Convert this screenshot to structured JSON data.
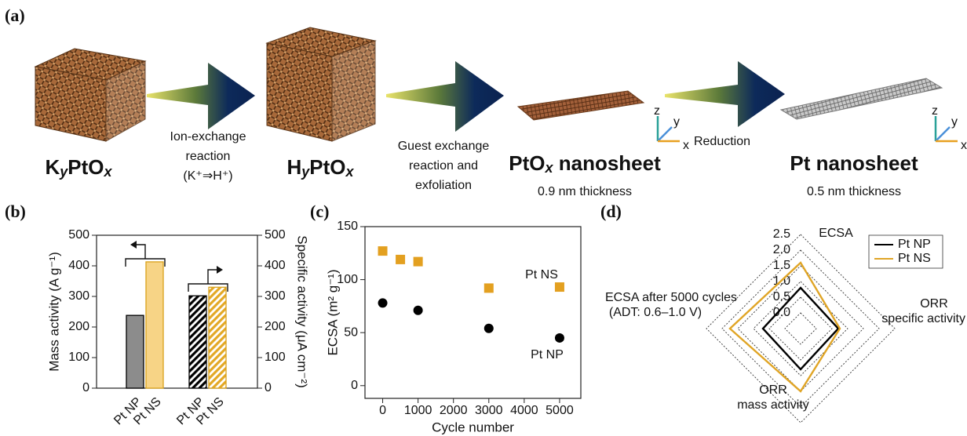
{
  "panel_a": {
    "label": "(a)",
    "stage_1": {
      "name": [
        "K",
        "y",
        "PtO",
        "x"
      ]
    },
    "step_1": [
      "Ion-exchange",
      "reaction",
      "(K⁺⇒H⁺)"
    ],
    "stage_2": {
      "name": [
        "H",
        "y",
        "PtO",
        "x"
      ]
    },
    "step_2": [
      "Guest exchange",
      "reaction and",
      "exfoliation"
    ],
    "stage_3": {
      "name": [
        "PtO",
        "x",
        " nanosheet"
      ],
      "note": "0.9 nm thickness"
    },
    "step_3": [
      "Reduction"
    ],
    "stage_4": {
      "name": [
        "Pt nanosheet"
      ],
      "note": "0.5 nm thickness"
    },
    "axes_icon": [
      "z",
      "y",
      "x"
    ]
  },
  "chart_data": [
    {
      "type": "bar",
      "label": "(b)",
      "categories": [
        "Pt NP",
        "Pt NS",
        "Pt NP",
        "Pt NS"
      ],
      "category_colors": [
        "#000000",
        "#d9a21b",
        "#000000",
        "#d9a21b"
      ],
      "series": [
        {
          "values": [
            238,
            413,
            null,
            null
          ],
          "colors": [
            "#8c8c8c",
            "#f7d486"
          ],
          "hatch": false
        },
        {
          "axis": "y2",
          "values": [
            null,
            null,
            302,
            330
          ],
          "colors": [
            "#000000",
            "#e3a825"
          ],
          "hatch": true
        }
      ],
      "ylabel": "Mass activity (A g⁻¹)",
      "y2label": "Specific activity (μA cm⁻²)",
      "ylim": [
        0,
        500
      ],
      "yticks": [
        0,
        100,
        200,
        300,
        400,
        500
      ],
      "y2lim": [
        0,
        500
      ],
      "y2ticks": [
        0,
        100,
        200,
        300,
        400,
        500
      ]
    },
    {
      "type": "scatter",
      "label": "(c)",
      "series": [
        {
          "name": "Pt NS",
          "color": "#e3a020",
          "marker": "square",
          "x": [
            0,
            500,
            1000,
            3000,
            5000
          ],
          "values": [
            127,
            119,
            117,
            92,
            93
          ]
        },
        {
          "name": "Pt NP",
          "color": "#000000",
          "marker": "circle",
          "x": [
            0,
            1000,
            3000,
            5000
          ],
          "values": [
            78,
            71,
            54,
            45
          ]
        }
      ],
      "xlabel": "Cycle number",
      "ylabel": "ECSA (m² g⁻¹)",
      "xlim": [
        -500,
        5600
      ],
      "xticks": [
        0,
        1000,
        2000,
        3000,
        4000,
        5000
      ],
      "ylim": [
        -12,
        150
      ],
      "yticks": [
        0,
        50,
        100,
        150
      ]
    },
    {
      "type": "radar",
      "label": "(d)",
      "axes": [
        [
          "ECSA"
        ],
        [
          "ORR",
          "specific activity"
        ],
        [
          "ORR",
          "mass activity"
        ],
        [
          "ECSA after 5000 cycles",
          "(ADT: 0.6–1.0 V)"
        ]
      ],
      "rlim": [
        -0.5,
        2.5
      ],
      "rticks": [
        {
          "value": 0,
          "label": "0.0"
        },
        0.5,
        {
          "value": 1,
          "label": "1.0"
        },
        1.5,
        {
          "value": 2,
          "label": "2.0"
        },
        2.5
      ],
      "series": [
        {
          "name": "Pt NP",
          "color": "#000000",
          "values": [
            0.8,
            0.7,
            0.8,
            0.7
          ]
        },
        {
          "name": "Pt NS",
          "color": "#e0a526",
          "values": [
            1.6,
            0.75,
            1.5,
            1.75
          ]
        }
      ],
      "legend": "upper right"
    }
  ]
}
